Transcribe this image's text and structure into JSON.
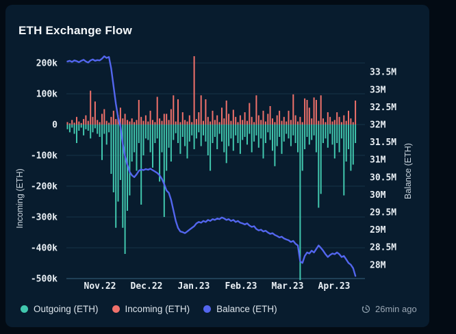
{
  "header": {
    "title": "ETH Exchange Flow"
  },
  "legend": [
    {
      "label": "Outgoing (ETH)",
      "color": "#41c7ae"
    },
    {
      "label": "Incoming (ETH)",
      "color": "#f0716b"
    },
    {
      "label": "Balance (ETH)",
      "color": "#5366ee"
    }
  ],
  "status": {
    "updated": "26min ago",
    "icon": "history-clock-icon"
  },
  "chart_data": {
    "type": "bar+line",
    "title": "ETH Exchange Flow",
    "grid": "horizontal-only",
    "legend_position": "bottom-left",
    "left_axis": {
      "label": "Incoming (ETH)",
      "unit": "k ETH",
      "ticks": [
        "200k",
        "100k",
        "0",
        "-100k",
        "-200k",
        "-300k",
        "-400k",
        "-500k"
      ],
      "range_k": [
        -500,
        200
      ]
    },
    "right_axis": {
      "label": "Balance (ETH)",
      "unit": "M ETH",
      "ticks": [
        "33.5M",
        "33M",
        "32.5M",
        "32M",
        "31.5M",
        "31M",
        "30.5M",
        "30M",
        "29.5M",
        "29M",
        "28.5M",
        "28M"
      ],
      "range_m": [
        27.6,
        33.9
      ]
    },
    "x_axis": {
      "ticks": [
        "Nov.22",
        "Dec.22",
        "Jan.23",
        "Feb.23",
        "Mar.23",
        "Apr.23"
      ]
    },
    "series": [
      {
        "name": "Outgoing (ETH)",
        "type": "bar",
        "color": "#41c7ae",
        "unit": "k",
        "values": [
          -15,
          -25,
          -10,
          -30,
          -60,
          -20,
          -10,
          -35,
          -15,
          -20,
          -45,
          -25,
          -12,
          -30,
          -40,
          -115,
          -30,
          -65,
          -25,
          -160,
          -220,
          -335,
          -250,
          -180,
          -335,
          -420,
          -280,
          -230,
          -120,
          -90,
          -150,
          -60,
          -260,
          -100,
          -45,
          -50,
          -90,
          -140,
          -60,
          -45,
          -185,
          -90,
          -300,
          -150,
          -75,
          -120,
          -50,
          -28,
          -60,
          -95,
          -40,
          -70,
          -110,
          -55,
          -35,
          -80,
          -45,
          -25,
          -70,
          -35,
          -55,
          -100,
          -150,
          -60,
          -40,
          -80,
          -30,
          -55,
          -90,
          -125,
          -70,
          -45,
          -85,
          -35,
          -60,
          -95,
          -50,
          -40,
          -65,
          -30,
          -90,
          -55,
          -35,
          -75,
          -45,
          -110,
          -60,
          -25,
          -50,
          -85,
          -135,
          -70,
          -40,
          -95,
          -55,
          -30,
          -45,
          -70,
          -35,
          -60,
          -90,
          -505,
          -150,
          -80,
          -40,
          -65,
          -50,
          -35,
          -90,
          -270,
          -225,
          -60,
          -45,
          -75,
          -30,
          -65,
          -110,
          -60,
          -90,
          -45,
          -230,
          -120,
          -80,
          -150,
          -130,
          -60
        ]
      },
      {
        "name": "Incoming (ETH)",
        "type": "bar",
        "color": "#f0716b",
        "unit": "k",
        "values": [
          8,
          4,
          15,
          6,
          25,
          10,
          5,
          18,
          30,
          12,
          110,
          25,
          75,
          15,
          8,
          35,
          50,
          12,
          6,
          25,
          45,
          18,
          30,
          55,
          20,
          35,
          15,
          10,
          20,
          8,
          15,
          80,
          25,
          12,
          30,
          10,
          45,
          15,
          8,
          90,
          20,
          12,
          35,
          35,
          15,
          50,
          95,
          10,
          82,
          8,
          40,
          15,
          10,
          30,
          8,
          222,
          18,
          40,
          95,
          12,
          82,
          25,
          10,
          45,
          15,
          30,
          8,
          55,
          20,
          78,
          35,
          12,
          48,
          25,
          8,
          30,
          15,
          40,
          12,
          70,
          25,
          8,
          95,
          30,
          15,
          45,
          10,
          35,
          60,
          20,
          8,
          30,
          45,
          12,
          25,
          10,
          45,
          15,
          98,
          30,
          10,
          25,
          8,
          85,
          80,
          55,
          20,
          88,
          80,
          12,
          95,
          20,
          8,
          40,
          25,
          10,
          15,
          40,
          25,
          8,
          30,
          12,
          45,
          20,
          8,
          78
        ]
      },
      {
        "name": "Balance (ETH)",
        "type": "line",
        "color": "#5366ee",
        "unit": "M",
        "values": [
          33.8,
          33.82,
          33.79,
          33.83,
          33.81,
          33.78,
          33.82,
          33.85,
          33.8,
          33.77,
          33.83,
          33.86,
          33.82,
          33.84,
          33.83,
          33.88,
          33.95,
          33.9,
          33.93,
          33.6,
          33.1,
          32.6,
          32.2,
          31.95,
          31.45,
          31.1,
          30.85,
          30.65,
          30.55,
          30.5,
          30.58,
          30.68,
          30.72,
          30.7,
          30.73,
          30.71,
          30.74,
          30.7,
          30.66,
          30.62,
          30.55,
          30.45,
          30.3,
          30.12,
          30.05,
          29.85,
          29.55,
          29.25,
          29.05,
          28.95,
          28.93,
          28.9,
          28.95,
          29.0,
          29.05,
          29.1,
          29.18,
          29.22,
          29.2,
          29.25,
          29.22,
          29.28,
          29.25,
          29.3,
          29.28,
          29.32,
          29.3,
          29.35,
          29.32,
          29.28,
          29.3,
          29.25,
          29.28,
          29.22,
          29.25,
          29.2,
          29.18,
          29.15,
          29.18,
          29.12,
          29.08,
          29.1,
          29.02,
          28.98,
          29.0,
          28.95,
          28.97,
          28.92,
          28.88,
          28.9,
          28.85,
          28.82,
          28.78,
          28.8,
          28.75,
          28.72,
          28.7,
          28.65,
          28.68,
          28.6,
          28.55,
          28.1,
          28.05,
          28.25,
          28.35,
          28.32,
          28.4,
          28.35,
          28.45,
          28.55,
          28.48,
          28.4,
          28.3,
          28.22,
          28.28,
          28.32,
          28.3,
          28.35,
          28.3,
          28.22,
          28.25,
          28.15,
          28.05,
          28.0,
          27.9,
          27.68
        ]
      }
    ]
  }
}
